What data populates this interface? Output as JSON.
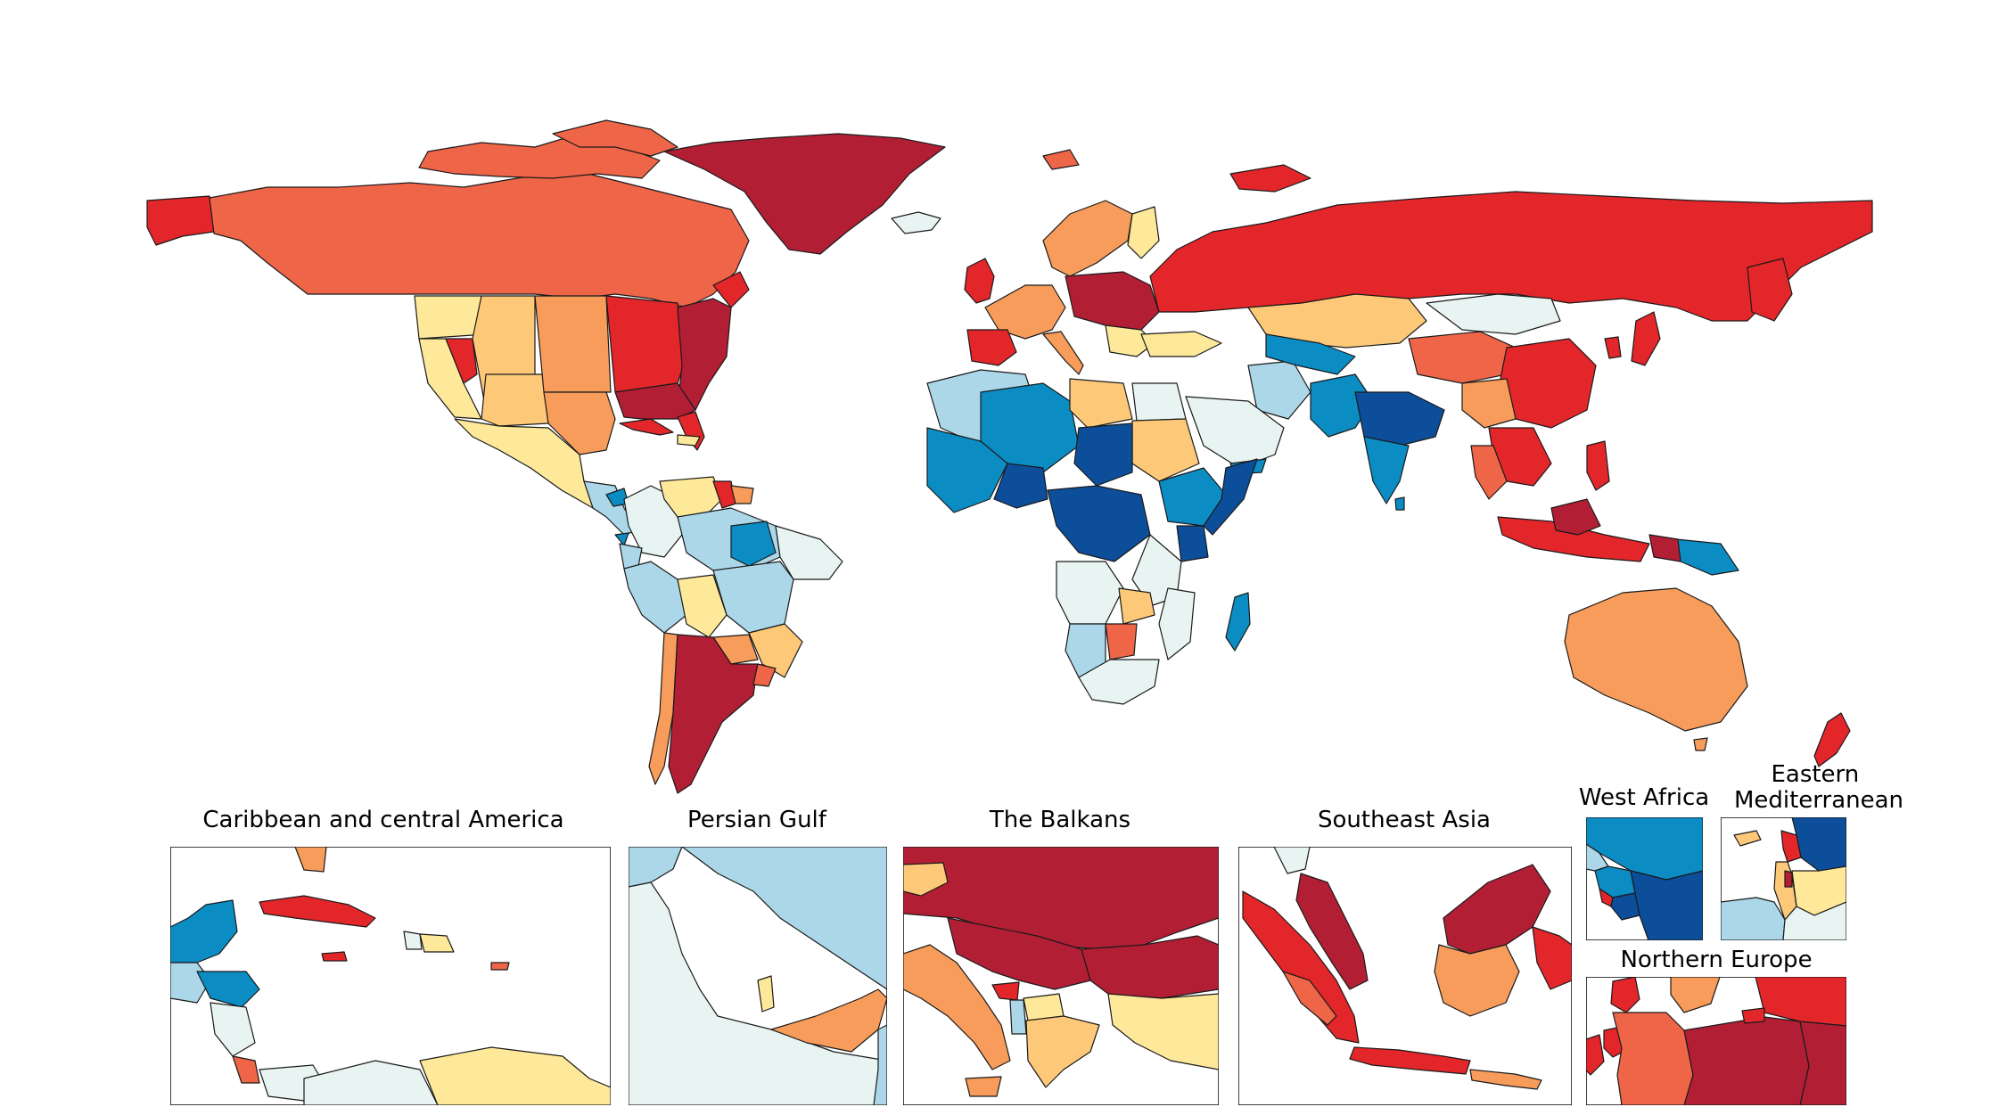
{
  "palette": {
    "dark_red": "#b21f35",
    "red": "#e3262a",
    "orange_red": "#ef6548",
    "orange": "#f79c5a",
    "light_orange": "#fdc979",
    "yellow": "#fee99a",
    "pale": "#e8f4f2",
    "light_blue": "#abd7e8",
    "blue": "#0b8dc3",
    "dark_blue": "#0d4e9a",
    "ocean": "#ffffff",
    "border": "#1a1a1a"
  },
  "insets": [
    {
      "id": "caribbean",
      "title_lines": [
        "Caribbean and central America"
      ]
    },
    {
      "id": "persian-gulf",
      "title_lines": [
        "Persian Gulf"
      ]
    },
    {
      "id": "balkans",
      "title_lines": [
        "The Balkans"
      ]
    },
    {
      "id": "southeast-asia",
      "title_lines": [
        "Southeast Asia"
      ]
    },
    {
      "id": "west-africa",
      "title_lines": [
        "West Africa"
      ]
    },
    {
      "id": "eastern-mediterranean",
      "title_lines": [
        "Eastern",
        "Mediterranean"
      ]
    },
    {
      "id": "northern-europe",
      "title_lines": [
        "Northern Europe"
      ]
    }
  ]
}
